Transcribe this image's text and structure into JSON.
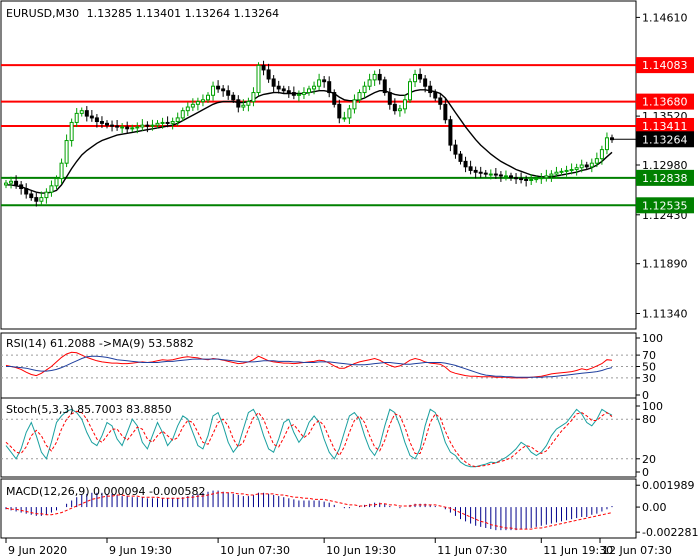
{
  "chart_data": {
    "type": "candlestick",
    "symbol": "EURUSD,M30",
    "ohlc_caption": "1.13285 1.13401 1.13264 1.13264",
    "price_axis": {
      "ticks": [
        "1.14610",
        "1.13520",
        "1.12980",
        "1.12430",
        "1.11890",
        "1.11340"
      ],
      "ylim": [
        1.1118,
        1.1478
      ]
    },
    "price_series": {
      "x": [
        0,
        1,
        2,
        3,
        4,
        5,
        6,
        7,
        8,
        9,
        10,
        11,
        12,
        13,
        14,
        15,
        16,
        17,
        18,
        19,
        20,
        21,
        22,
        23,
        24,
        25,
        26,
        27,
        28,
        29,
        30,
        31,
        32,
        33,
        34,
        35,
        36,
        37,
        38,
        39,
        40,
        41,
        42,
        43,
        44,
        45,
        46,
        47,
        48,
        49,
        50,
        51,
        52,
        53,
        54,
        55,
        56,
        57,
        58,
        59,
        60,
        61,
        62,
        63,
        64,
        65,
        66,
        67,
        68,
        69,
        70,
        71,
        72,
        73,
        74,
        75,
        76,
        77,
        78,
        79,
        80,
        81,
        82,
        83,
        84,
        85,
        86,
        87,
        88,
        89,
        90,
        91,
        92,
        93,
        94,
        95,
        96,
        97,
        98,
        99,
        100,
        101,
        102,
        103,
        104,
        105,
        106,
        107,
        108,
        109,
        110,
        111,
        112,
        113,
        114,
        115,
        116,
        117,
        118,
        119,
        120
      ],
      "close": [
        1.1278,
        1.128,
        1.1276,
        1.1272,
        1.1266,
        1.1262,
        1.1258,
        1.1262,
        1.1268,
        1.1275,
        1.1283,
        1.13,
        1.1325,
        1.1345,
        1.1355,
        1.1358,
        1.1352,
        1.135,
        1.1346,
        1.1344,
        1.1342,
        1.1341,
        1.134,
        1.134,
        1.1338,
        1.1339,
        1.134,
        1.1342,
        1.1341,
        1.1342,
        1.1344,
        1.1345,
        1.1344,
        1.1346,
        1.135,
        1.1358,
        1.1362,
        1.1365,
        1.1368,
        1.137,
        1.1375,
        1.1385,
        1.1382,
        1.138,
        1.1375,
        1.137,
        1.1362,
        1.1364,
        1.1368,
        1.1378,
        1.1408,
        1.1403,
        1.1393,
        1.1385,
        1.1382,
        1.138,
        1.1378,
        1.1375,
        1.1376,
        1.1378,
        1.1382,
        1.1385,
        1.1392,
        1.139,
        1.1378,
        1.1365,
        1.135,
        1.135,
        1.136,
        1.137,
        1.1378,
        1.1385,
        1.1392,
        1.1398,
        1.1392,
        1.1378,
        1.1365,
        1.1358,
        1.136,
        1.137,
        1.139,
        1.1398,
        1.1393,
        1.1385,
        1.1378,
        1.1372,
        1.1365,
        1.1348,
        1.132,
        1.131,
        1.1302,
        1.1296,
        1.1292,
        1.129,
        1.1289,
        1.1288,
        1.1288,
        1.1287,
        1.1286,
        1.1286,
        1.1284,
        1.1283,
        1.1282,
        1.1281,
        1.1282,
        1.1283,
        1.1284,
        1.1286,
        1.1288,
        1.129,
        1.1291,
        1.1292,
        1.1293,
        1.1295,
        1.1298,
        1.1296,
        1.13,
        1.1305,
        1.1315,
        1.1328,
        1.1326
      ]
    },
    "moving_average": {
      "values": [
        1.1276,
        1.1276,
        1.1275,
        1.1274,
        1.1272,
        1.127,
        1.1268,
        1.1267,
        1.1267,
        1.1268,
        1.127,
        1.1276,
        1.1285,
        1.1294,
        1.1302,
        1.1309,
        1.1314,
        1.1318,
        1.1322,
        1.1325,
        1.1327,
        1.1329,
        1.1331,
        1.1332,
        1.1333,
        1.1334,
        1.1335,
        1.1336,
        1.1337,
        1.1338,
        1.1339,
        1.134,
        1.1341,
        1.1342,
        1.1344,
        1.1347,
        1.135,
        1.1353,
        1.1356,
        1.1359,
        1.1362,
        1.1365,
        1.1367,
        1.1368,
        1.1368,
        1.1368,
        1.1367,
        1.1367,
        1.1368,
        1.137,
        1.1374,
        1.1376,
        1.1377,
        1.1378,
        1.1378,
        1.1377,
        1.1377,
        1.1377,
        1.1377,
        1.1377,
        1.1378,
        1.1379,
        1.138,
        1.138,
        1.1379,
        1.1377,
        1.1373,
        1.137,
        1.1369,
        1.1369,
        1.137,
        1.1372,
        1.1375,
        1.1378,
        1.138,
        1.138,
        1.1378,
        1.1376,
        1.1375,
        1.1375,
        1.1378,
        1.138,
        1.1381,
        1.1381,
        1.138,
        1.1379,
        1.1377,
        1.1372,
        1.1364,
        1.1356,
        1.1348,
        1.134,
        1.1333,
        1.1326,
        1.132,
        1.1315,
        1.131,
        1.1306,
        1.1302,
        1.1299,
        1.1296,
        1.1293,
        1.1291,
        1.1289,
        1.1287,
        1.1286,
        1.1285,
        1.1285,
        1.1285,
        1.1286,
        1.1287,
        1.1288,
        1.1289,
        1.129,
        1.1292,
        1.1293,
        1.1295,
        1.1298,
        1.1302,
        1.1307,
        1.1312
      ]
    },
    "levels": [
      {
        "label": "1.14083",
        "value": 1.14083,
        "color": "#ff0000"
      },
      {
        "label": "1.13680",
        "value": 1.1368,
        "color": "#ff0000"
      },
      {
        "label": "1.13411",
        "value": 1.13411,
        "color": "#ff0000"
      },
      {
        "label": "1.12838",
        "value": 1.12838,
        "color": "#008000"
      },
      {
        "label": "1.12535",
        "value": 1.12535,
        "color": "#008000"
      }
    ],
    "current_price": {
      "label": "1.13264",
      "value": 1.13264,
      "color": "#000000"
    },
    "rsi": {
      "caption": "RSI(14) 61.2088  ->MA(9) 53.5882",
      "ticks": [
        "100",
        "70",
        "50",
        "30",
        "0"
      ],
      "levels": [
        70,
        50,
        30
      ],
      "ylim": [
        0,
        100
      ],
      "values": [
        52,
        50,
        48,
        45,
        40,
        36,
        34,
        38,
        44,
        50,
        58,
        66,
        72,
        75,
        74,
        70,
        66,
        63,
        60,
        58,
        57,
        56,
        56,
        55,
        55,
        56,
        57,
        58,
        57,
        58,
        60,
        62,
        61,
        62,
        64,
        66,
        67,
        66,
        65,
        63,
        62,
        64,
        63,
        61,
        59,
        57,
        55,
        56,
        58,
        62,
        68,
        64,
        60,
        58,
        57,
        56,
        56,
        55,
        56,
        57,
        58,
        59,
        61,
        60,
        56,
        51,
        47,
        47,
        51,
        55,
        58,
        60,
        62,
        64,
        61,
        56,
        52,
        49,
        51,
        55,
        61,
        64,
        62,
        58,
        56,
        55,
        54,
        49,
        41,
        38,
        36,
        34,
        33,
        33,
        32,
        32,
        32,
        31,
        31,
        31,
        30,
        30,
        30,
        30,
        31,
        32,
        33,
        35,
        37,
        38,
        39,
        40,
        41,
        43,
        46,
        44,
        47,
        51,
        55,
        62,
        61
      ],
      "ma": [
        50,
        50,
        49,
        48,
        47,
        45,
        43,
        42,
        42,
        43,
        45,
        48,
        52,
        56,
        60,
        64,
        67,
        68,
        68,
        67,
        66,
        64,
        62,
        61,
        60,
        59,
        58,
        57,
        57,
        57,
        57,
        58,
        59,
        59,
        60,
        61,
        62,
        63,
        63,
        63,
        63,
        63,
        63,
        62,
        61,
        60,
        59,
        58,
        58,
        58,
        59,
        60,
        60,
        60,
        59,
        59,
        59,
        58,
        58,
        57,
        57,
        57,
        58,
        58,
        58,
        57,
        56,
        55,
        54,
        53,
        53,
        53,
        54,
        55,
        56,
        57,
        57,
        56,
        55,
        54,
        54,
        55,
        56,
        57,
        57,
        57,
        57,
        56,
        54,
        52,
        49,
        46,
        43,
        40,
        37,
        35,
        34,
        33,
        33,
        32,
        32,
        31,
        31,
        31,
        31,
        31,
        31,
        32,
        32,
        33,
        34,
        35,
        36,
        37,
        38,
        39,
        40,
        41,
        43,
        46,
        48
      ]
    },
    "stochastic": {
      "caption": "Stoch(5,3,3) 85.7003 83.8850",
      "ticks": [
        "100",
        "80",
        "20",
        "0"
      ],
      "levels": [
        80,
        20
      ],
      "ylim": [
        0,
        100
      ],
      "k": [
        40,
        30,
        20,
        35,
        60,
        75,
        55,
        30,
        20,
        45,
        75,
        85,
        92,
        95,
        90,
        80,
        60,
        45,
        40,
        55,
        75,
        70,
        50,
        40,
        60,
        80,
        70,
        45,
        35,
        55,
        75,
        60,
        40,
        50,
        70,
        85,
        80,
        60,
        40,
        35,
        55,
        85,
        90,
        70,
        45,
        30,
        40,
        65,
        90,
        95,
        80,
        55,
        35,
        30,
        50,
        75,
        80,
        60,
        45,
        55,
        75,
        85,
        75,
        50,
        30,
        20,
        35,
        60,
        85,
        90,
        80,
        55,
        35,
        25,
        40,
        70,
        95,
        90,
        70,
        45,
        25,
        20,
        35,
        70,
        95,
        90,
        70,
        45,
        30,
        25,
        15,
        10,
        8,
        8,
        10,
        12,
        15,
        14,
        18,
        22,
        28,
        35,
        45,
        40,
        30,
        25,
        30,
        40,
        55,
        65,
        70,
        75,
        85,
        95,
        88,
        75,
        70,
        80,
        95,
        90,
        86
      ],
      "d": [
        45,
        38,
        30,
        28,
        38,
        55,
        63,
        55,
        40,
        32,
        45,
        65,
        80,
        88,
        92,
        90,
        80,
        65,
        50,
        45,
        55,
        65,
        65,
        55,
        48,
        58,
        68,
        65,
        50,
        45,
        55,
        62,
        55,
        48,
        52,
        68,
        78,
        75,
        60,
        45,
        42,
        58,
        75,
        80,
        70,
        50,
        38,
        45,
        65,
        82,
        90,
        80,
        60,
        42,
        38,
        52,
        68,
        72,
        62,
        52,
        58,
        72,
        78,
        70,
        52,
        35,
        25,
        38,
        60,
        78,
        85,
        75,
        55,
        38,
        32,
        48,
        72,
        88,
        85,
        68,
        45,
        28,
        28,
        48,
        75,
        88,
        82,
        62,
        45,
        32,
        22,
        15,
        10,
        8,
        9,
        10,
        12,
        14,
        16,
        18,
        22,
        28,
        35,
        40,
        38,
        32,
        28,
        32,
        42,
        52,
        62,
        70,
        78,
        88,
        90,
        85,
        78,
        78,
        85,
        90,
        84
      ]
    },
    "macd": {
      "caption": "MACD(12,26,9) 0.000094 -0.000582",
      "ticks": [
        "0.001989",
        "0.00",
        "-0.002281"
      ],
      "ylim": [
        -0.00245,
        0.0021
      ],
      "hist": [
        -0.0002,
        -0.0003,
        -0.0004,
        -0.0005,
        -0.0006,
        -0.0007,
        -0.0008,
        -0.0008,
        -0.0007,
        -0.0005,
        -0.0003,
        0.0,
        0.0003,
        0.0006,
        0.0009,
        0.0011,
        0.0012,
        0.0013,
        0.0013,
        0.0013,
        0.0012,
        0.0012,
        0.0011,
        0.001,
        0.001,
        0.0009,
        0.0009,
        0.0009,
        0.0008,
        0.0008,
        0.0008,
        0.0008,
        0.0008,
        0.0008,
        0.0008,
        0.0009,
        0.001,
        0.0011,
        0.0012,
        0.0013,
        0.0014,
        0.0015,
        0.0015,
        0.0014,
        0.0013,
        0.0012,
        0.0011,
        0.001,
        0.001,
        0.0011,
        0.0013,
        0.0013,
        0.0012,
        0.0011,
        0.001,
        0.0009,
        0.0008,
        0.0007,
        0.0006,
        0.0006,
        0.0006,
        0.0006,
        0.0006,
        0.0005,
        0.0004,
        0.0002,
        0.0,
        -0.0001,
        -0.0001,
        0.0,
        0.0001,
        0.0002,
        0.0003,
        0.0004,
        0.0004,
        0.0003,
        0.0001,
        0.0,
        -0.0001,
        0.0,
        0.0002,
        0.0003,
        0.0003,
        0.0003,
        0.0002,
        0.0001,
        0.0,
        -0.0002,
        -0.0005,
        -0.0008,
        -0.0011,
        -0.0013,
        -0.0015,
        -0.0017,
        -0.0018,
        -0.0019,
        -0.002,
        -0.0021,
        -0.0021,
        -0.0021,
        -0.0021,
        -0.0021,
        -0.002,
        -0.002,
        -0.0019,
        -0.0018,
        -0.0017,
        -0.0016,
        -0.0015,
        -0.0014,
        -0.0013,
        -0.0012,
        -0.0011,
        -0.001,
        -0.0009,
        -0.0009,
        -0.0007,
        -0.0006,
        -0.0004,
        -0.0002,
        0.0001
      ],
      "signal": [
        -0.0001,
        -0.0002,
        -0.0002,
        -0.0003,
        -0.0004,
        -0.0005,
        -0.0006,
        -0.0006,
        -0.0007,
        -0.0007,
        -0.0006,
        -0.0005,
        -0.0003,
        -0.0001,
        0.0001,
        0.0003,
        0.0005,
        0.0007,
        0.0008,
        0.0009,
        0.001,
        0.001,
        0.0011,
        0.0011,
        0.001,
        0.001,
        0.001,
        0.0009,
        0.0009,
        0.0009,
        0.0009,
        0.0008,
        0.0008,
        0.0008,
        0.0008,
        0.0008,
        0.0009,
        0.0009,
        0.001,
        0.001,
        0.0011,
        0.0012,
        0.0013,
        0.0013,
        0.0013,
        0.0013,
        0.0012,
        0.0012,
        0.0011,
        0.0011,
        0.0012,
        0.0012,
        0.0012,
        0.0012,
        0.0011,
        0.0011,
        0.001,
        0.0009,
        0.0009,
        0.0008,
        0.0008,
        0.0007,
        0.0007,
        0.0007,
        0.0006,
        0.0005,
        0.0004,
        0.0003,
        0.0002,
        0.0002,
        0.0001,
        0.0001,
        0.0002,
        0.0002,
        0.0003,
        0.0003,
        0.0002,
        0.0002,
        0.0001,
        0.0001,
        0.0001,
        0.0002,
        0.0002,
        0.0002,
        0.0002,
        0.0002,
        0.0001,
        0.0,
        -0.0001,
        -0.0003,
        -0.0005,
        -0.0007,
        -0.0009,
        -0.0011,
        -0.0013,
        -0.0014,
        -0.0016,
        -0.0017,
        -0.0018,
        -0.0019,
        -0.0019,
        -0.002,
        -0.002,
        -0.002,
        -0.002,
        -0.0019,
        -0.0019,
        -0.0018,
        -0.0017,
        -0.0016,
        -0.0015,
        -0.0014,
        -0.0013,
        -0.0012,
        -0.0011,
        -0.001,
        -0.0009,
        -0.0008,
        -0.0007,
        -0.0006,
        -0.0005
      ]
    },
    "time_axis": {
      "labels": [
        "9 Jun 2020",
        "9 Jun 19:30",
        "10 Jun 07:30",
        "10 Jun 19:30",
        "11 Jun 07:30",
        "11 Jun 19:30",
        "12 Jun 07:30"
      ],
      "at_bar": [
        0,
        20,
        42,
        63,
        85,
        106,
        124
      ]
    },
    "colors": {
      "bull_candle": "#00a000",
      "bear_candle": "#000000",
      "ma_line": "#000000",
      "rsi_line": "#ff0000",
      "rsi_ma_line": "#1f3f9f",
      "stoch_k": "#1aa0a0",
      "stoch_d": "#ff0000",
      "macd_hist": "#00008b",
      "macd_signal": "#ff0000"
    }
  }
}
